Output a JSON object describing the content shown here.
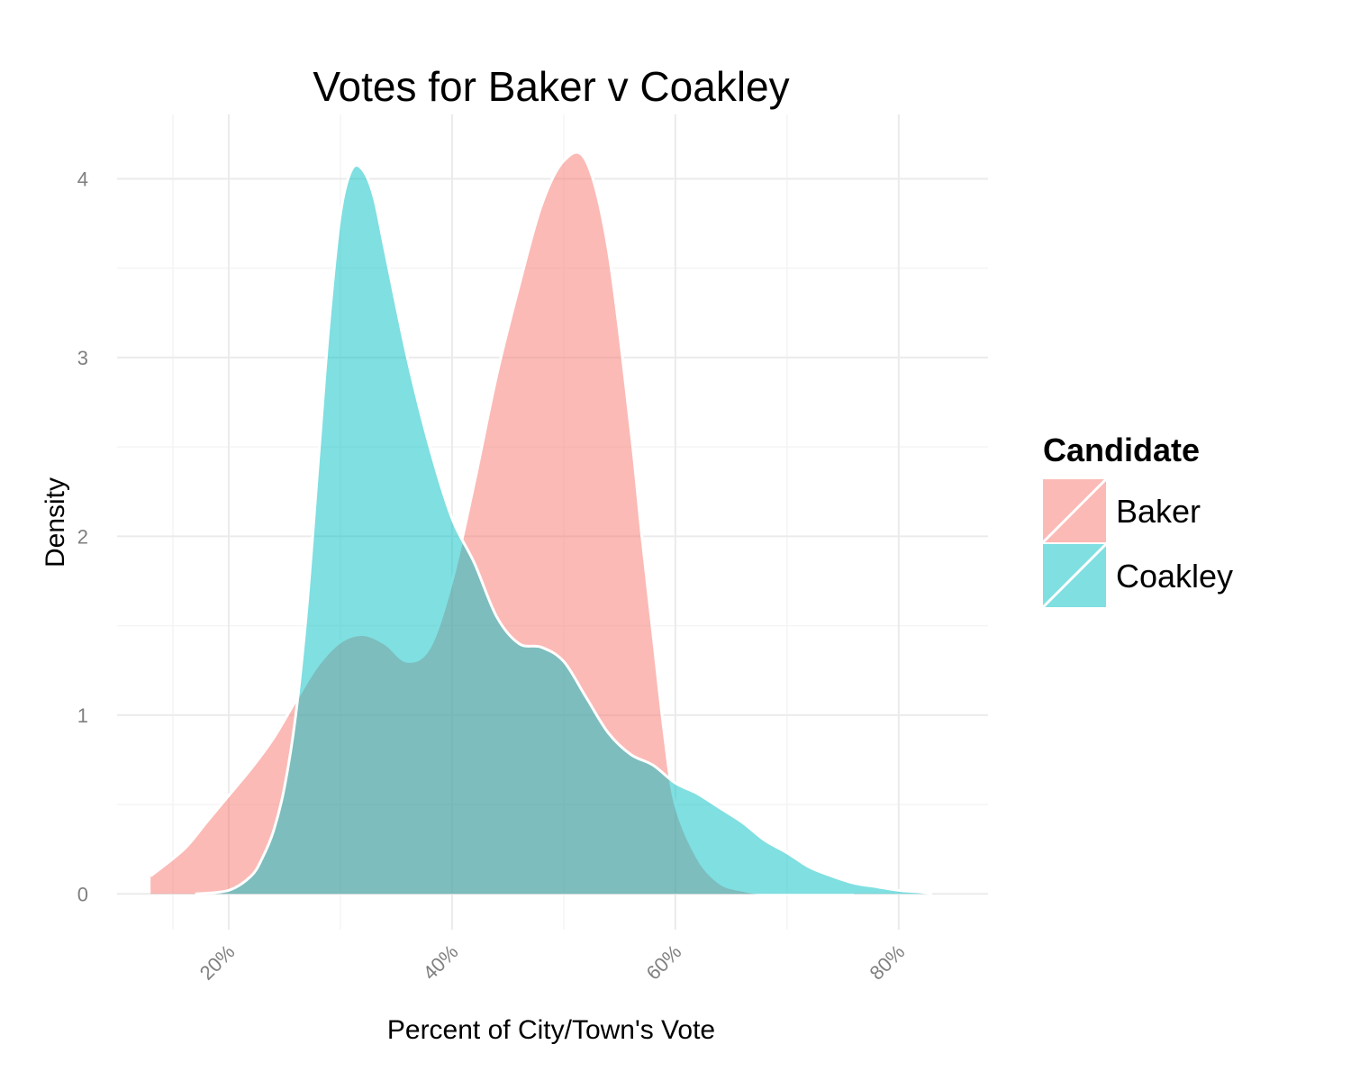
{
  "chart_data": {
    "type": "area",
    "title": "Votes for Baker v Coakley",
    "xlabel": "Percent of City/Town's Vote",
    "ylabel": "Density",
    "xlim": [
      0.1,
      0.88
    ],
    "ylim": [
      -0.2,
      4.36
    ],
    "x_ticks": [
      0.2,
      0.4,
      0.6,
      0.8
    ],
    "x_tick_labels": [
      "20%",
      "40%",
      "60%",
      "80%"
    ],
    "y_ticks": [
      0,
      1,
      2,
      3,
      4
    ],
    "y_tick_labels": [
      "0",
      "1",
      "2",
      "3",
      "4"
    ],
    "grid": true,
    "legend": {
      "title": "Candidate",
      "position": "right"
    },
    "series": [
      {
        "name": "Baker",
        "color": "#F8766D",
        "x": [
          0.13,
          0.16,
          0.18,
          0.2,
          0.22,
          0.24,
          0.26,
          0.28,
          0.3,
          0.32,
          0.34,
          0.36,
          0.38,
          0.4,
          0.42,
          0.44,
          0.46,
          0.48,
          0.5,
          0.52,
          0.54,
          0.56,
          0.57,
          0.58,
          0.59,
          0.6,
          0.62,
          0.64,
          0.66,
          0.68,
          0.7,
          0.72,
          0.74,
          0.76
        ],
        "y": [
          0.1,
          0.25,
          0.4,
          0.55,
          0.7,
          0.87,
          1.08,
          1.28,
          1.41,
          1.45,
          1.4,
          1.3,
          1.38,
          1.75,
          2.3,
          2.9,
          3.4,
          3.85,
          4.1,
          4.1,
          3.6,
          2.6,
          2.0,
          1.45,
          0.9,
          0.5,
          0.2,
          0.06,
          0.02,
          0.0,
          0.0,
          0.0,
          0.0,
          0.0
        ]
      },
      {
        "name": "Coakley",
        "color": "#00BFC4",
        "x": [
          0.17,
          0.2,
          0.22,
          0.23,
          0.24,
          0.25,
          0.26,
          0.27,
          0.28,
          0.29,
          0.3,
          0.31,
          0.32,
          0.33,
          0.34,
          0.36,
          0.38,
          0.4,
          0.42,
          0.44,
          0.46,
          0.48,
          0.5,
          0.52,
          0.54,
          0.56,
          0.58,
          0.6,
          0.62,
          0.64,
          0.66,
          0.68,
          0.7,
          0.72,
          0.74,
          0.76,
          0.78,
          0.8,
          0.82,
          0.83
        ],
        "y": [
          0.0,
          0.02,
          0.1,
          0.2,
          0.35,
          0.6,
          1.0,
          1.6,
          2.4,
          3.2,
          3.8,
          4.05,
          4.05,
          3.9,
          3.6,
          3.0,
          2.5,
          2.1,
          1.85,
          1.55,
          1.4,
          1.38,
          1.3,
          1.1,
          0.9,
          0.78,
          0.72,
          0.62,
          0.56,
          0.48,
          0.4,
          0.3,
          0.23,
          0.15,
          0.1,
          0.06,
          0.04,
          0.02,
          0.01,
          0.0
        ]
      }
    ]
  }
}
